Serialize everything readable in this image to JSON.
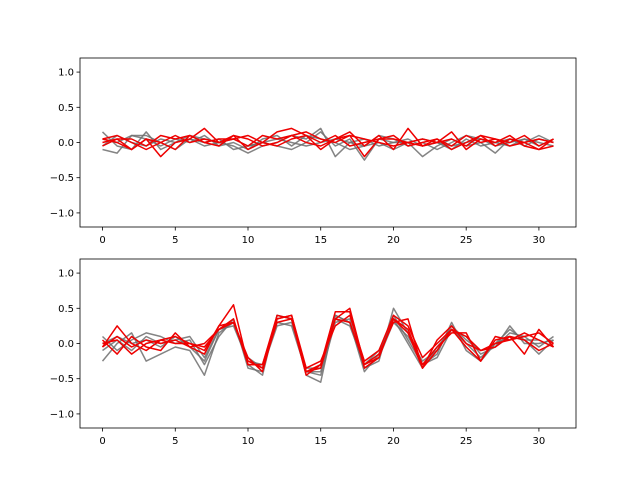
{
  "colors": {
    "gray": "#6e6e6e",
    "red": "#ee0000"
  },
  "chart_data": [
    {
      "type": "line",
      "xlim": [
        -1.55,
        32.55
      ],
      "ylim": [
        -1.2,
        1.2
      ],
      "xticks": [
        0,
        5,
        10,
        15,
        20,
        25,
        30
      ],
      "yticks": [
        -1.0,
        -0.5,
        0.0,
        0.5,
        1.0
      ],
      "x": [
        0,
        1,
        2,
        3,
        4,
        5,
        6,
        7,
        8,
        9,
        10,
        11,
        12,
        13,
        14,
        15,
        16,
        17,
        18,
        19,
        20,
        21,
        22,
        23,
        24,
        25,
        26,
        27,
        28,
        29,
        30,
        31
      ],
      "series": [
        {
          "group": "gray",
          "values": [
            0.15,
            -0.05,
            -0.1,
            0.15,
            -0.1,
            0.0,
            0.1,
            0.05,
            0.0,
            -0.05,
            -0.15,
            -0.05,
            0.0,
            0.1,
            0.05,
            0.2,
            -0.2,
            0.0,
            -0.05,
            0.0,
            -0.1,
            0.0,
            -0.2,
            -0.05,
            0.05,
            -0.05,
            0.0,
            -0.15,
            0.05,
            0.0,
            0.1,
            0.0
          ]
        },
        {
          "group": "gray",
          "values": [
            -0.1,
            -0.15,
            0.1,
            0.1,
            0.0,
            -0.1,
            0.05,
            0.0,
            0.05,
            -0.1,
            -0.05,
            0.0,
            -0.05,
            -0.1,
            0.0,
            0.15,
            -0.05,
            0.05,
            -0.25,
            0.05,
            0.0,
            0.05,
            -0.05,
            0.0,
            -0.1,
            0.05,
            -0.05,
            0.0,
            0.05,
            -0.05,
            0.05,
            0.0
          ]
        },
        {
          "group": "gray",
          "values": [
            0.05,
            0.0,
            0.1,
            0.05,
            -0.05,
            0.05,
            0.0,
            0.1,
            -0.05,
            0.0,
            -0.1,
            0.05,
            0.1,
            -0.05,
            0.1,
            0.05,
            0.0,
            -0.1,
            -0.05,
            0.1,
            0.05,
            -0.05,
            0.0,
            -0.1,
            0.0,
            0.1,
            0.05,
            -0.05,
            0.0,
            0.05,
            -0.05,
            0.05
          ]
        },
        {
          "group": "gray",
          "values": [
            -0.05,
            0.1,
            0.0,
            -0.05,
            0.05,
            0.0,
            0.05,
            -0.05,
            0.0,
            0.05,
            -0.05,
            0.0,
            0.05,
            0.0,
            -0.05,
            0.0,
            0.05,
            0.0,
            0.05,
            -0.05,
            0.0,
            0.0,
            0.05,
            0.0,
            -0.05,
            0.0,
            0.05,
            0.0,
            -0.05,
            0.05,
            0.0,
            -0.05
          ]
        },
        {
          "group": "red",
          "values": [
            0.05,
            0.1,
            0.0,
            -0.1,
            0.0,
            -0.1,
            0.1,
            0.0,
            -0.05,
            0.1,
            -0.1,
            0.0,
            0.15,
            0.2,
            0.1,
            -0.1,
            0.05,
            0.1,
            -0.2,
            0.05,
            0.1,
            -0.05,
            0.0,
            0.05,
            -0.1,
            0.0,
            0.1,
            0.05,
            -0.05,
            0.0,
            0.05,
            0.0
          ]
        },
        {
          "group": "red",
          "values": [
            -0.05,
            0.05,
            -0.1,
            0.05,
            -0.2,
            0.0,
            0.05,
            0.2,
            0.0,
            0.05,
            -0.05,
            0.1,
            0.05,
            0.1,
            0.0,
            -0.05,
            0.05,
            0.15,
            -0.05,
            0.1,
            -0.1,
            0.2,
            -0.05,
            0.0,
            0.15,
            -0.1,
            0.05,
            0.0,
            0.1,
            -0.05,
            -0.1,
            -0.05
          ]
        },
        {
          "group": "red",
          "values": [
            0.0,
            0.05,
            0.05,
            -0.05,
            0.1,
            0.05,
            0.1,
            0.0,
            0.05,
            0.05,
            0.1,
            0.0,
            -0.05,
            0.05,
            0.1,
            0.0,
            0.1,
            -0.05,
            0.0,
            0.05,
            0.05,
            0.0,
            -0.05,
            0.05,
            -0.05,
            0.1,
            0.0,
            0.05,
            0.0,
            0.1,
            -0.05,
            0.05
          ]
        },
        {
          "group": "red",
          "values": [
            0.05,
            0.0,
            -0.1,
            0.05,
            0.0,
            0.1,
            0.0,
            0.05,
            0.0,
            0.1,
            0.05,
            -0.05,
            0.0,
            0.1,
            0.15,
            0.05,
            0.0,
            0.1,
            0.05,
            0.0,
            -0.05,
            0.0,
            0.05,
            0.0,
            0.05,
            -0.05,
            0.1,
            -0.05,
            0.05,
            0.0,
            -0.1,
            0.05
          ]
        }
      ]
    },
    {
      "type": "line",
      "xlim": [
        -1.55,
        32.55
      ],
      "ylim": [
        -1.2,
        1.2
      ],
      "xticks": [
        0,
        5,
        10,
        15,
        20,
        25,
        30
      ],
      "yticks": [
        -1.0,
        -0.5,
        0.0,
        0.5,
        1.0
      ],
      "x": [
        0,
        1,
        2,
        3,
        4,
        5,
        6,
        7,
        8,
        9,
        10,
        11,
        12,
        13,
        14,
        15,
        16,
        17,
        18,
        19,
        20,
        21,
        22,
        23,
        24,
        25,
        26,
        27,
        28,
        29,
        30,
        31
      ],
      "series": [
        {
          "group": "gray",
          "values": [
            -0.25,
            0.0,
            0.15,
            -0.25,
            -0.15,
            -0.05,
            -0.1,
            -0.45,
            0.15,
            0.3,
            -0.3,
            -0.45,
            0.4,
            0.35,
            -0.45,
            -0.55,
            0.4,
            0.3,
            -0.35,
            -0.25,
            0.5,
            0.15,
            -0.3,
            -0.15,
            0.3,
            -0.1,
            -0.25,
            0.0,
            0.2,
            0.05,
            -0.15,
            0.05
          ]
        },
        {
          "group": "gray",
          "values": [
            -0.1,
            0.05,
            -0.1,
            0.1,
            0.0,
            0.05,
            0.1,
            -0.2,
            0.2,
            0.25,
            -0.25,
            -0.3,
            0.3,
            0.25,
            -0.4,
            -0.4,
            0.35,
            0.25,
            -0.3,
            -0.1,
            0.35,
            0.0,
            -0.35,
            -0.05,
            0.2,
            0.1,
            -0.15,
            -0.05,
            0.25,
            0.0,
            0.0,
            0.05
          ]
        },
        {
          "group": "gray",
          "values": [
            0.1,
            -0.1,
            0.05,
            0.15,
            0.1,
            0.0,
            0.05,
            -0.3,
            0.1,
            0.35,
            -0.35,
            -0.4,
            0.4,
            0.35,
            -0.4,
            -0.45,
            0.3,
            0.35,
            -0.35,
            -0.2,
            0.3,
            0.1,
            -0.25,
            -0.1,
            0.25,
            0.05,
            -0.1,
            -0.05,
            0.15,
            0.1,
            -0.05,
            0.1
          ]
        },
        {
          "group": "gray",
          "values": [
            0.0,
            0.1,
            0.0,
            0.05,
            -0.05,
            0.1,
            -0.05,
            -0.25,
            0.2,
            0.3,
            -0.2,
            -0.35,
            0.25,
            0.3,
            -0.35,
            -0.35,
            0.4,
            0.3,
            -0.4,
            -0.15,
            0.4,
            0.05,
            -0.3,
            -0.2,
            0.2,
            0.0,
            -0.2,
            0.0,
            0.1,
            0.05,
            0.05,
            -0.05
          ]
        },
        {
          "group": "red",
          "values": [
            0.05,
            -0.15,
            0.1,
            -0.05,
            -0.1,
            0.15,
            -0.05,
            -0.15,
            0.25,
            0.55,
            -0.3,
            -0.3,
            0.4,
            0.35,
            -0.45,
            -0.3,
            0.45,
            0.45,
            -0.35,
            -0.2,
            0.35,
            0.15,
            -0.35,
            -0.1,
            0.2,
            -0.05,
            -0.25,
            0.1,
            0.05,
            0.15,
            0.05,
            -0.05
          ]
        },
        {
          "group": "red",
          "values": [
            -0.05,
            0.25,
            0.0,
            -0.1,
            0.05,
            0.0,
            0.0,
            -0.05,
            0.2,
            0.3,
            -0.2,
            -0.4,
            0.35,
            0.4,
            -0.4,
            -0.35,
            0.35,
            0.5,
            -0.3,
            -0.15,
            0.3,
            0.35,
            -0.35,
            0.05,
            0.25,
            0.0,
            -0.1,
            -0.05,
            0.1,
            -0.15,
            0.2,
            -0.05
          ]
        },
        {
          "group": "red",
          "values": [
            0.0,
            0.05,
            -0.15,
            0.0,
            0.05,
            0.1,
            0.0,
            -0.1,
            0.25,
            0.3,
            -0.25,
            -0.35,
            0.3,
            0.35,
            -0.4,
            -0.3,
            0.35,
            0.3,
            -0.3,
            -0.2,
            0.35,
            0.2,
            -0.3,
            -0.05,
            0.15,
            0.15,
            -0.25,
            0.05,
            0.1,
            0.05,
            -0.1,
            0.0
          ]
        },
        {
          "group": "red",
          "values": [
            -0.05,
            0.1,
            -0.05,
            0.05,
            0.0,
            0.05,
            -0.05,
            0.0,
            0.2,
            0.35,
            -0.3,
            -0.3,
            0.35,
            0.4,
            -0.35,
            -0.25,
            0.25,
            0.4,
            -0.25,
            -0.1,
            0.4,
            0.25,
            -0.2,
            0.0,
            0.2,
            0.1,
            -0.1,
            0.0,
            0.05,
            0.1,
            0.15,
            0.0
          ]
        }
      ]
    }
  ]
}
